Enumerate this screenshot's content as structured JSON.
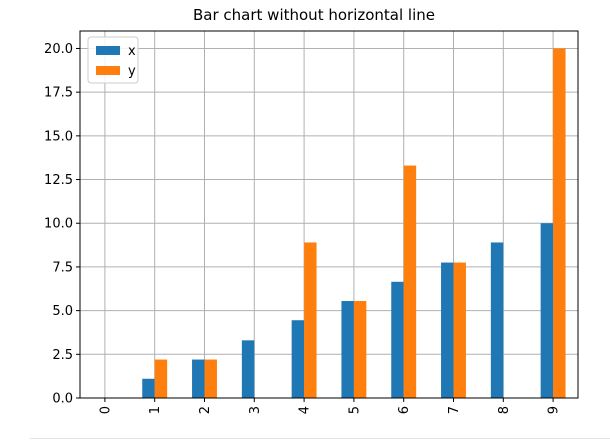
{
  "chart_data": {
    "type": "bar",
    "title": "Bar chart without horizontal line",
    "xlabel": "",
    "ylabel": "",
    "categories": [
      "0",
      "1",
      "2",
      "3",
      "4",
      "5",
      "6",
      "7",
      "8",
      "9"
    ],
    "series": [
      {
        "name": "x",
        "color": "#1f77b4",
        "values": [
          0,
          1.1,
          2.2,
          3.3,
          4.45,
          5.55,
          6.65,
          7.75,
          8.9,
          10.0
        ]
      },
      {
        "name": "y",
        "color": "#ff7f0e",
        "values": [
          0,
          2.2,
          2.2,
          0,
          8.9,
          5.55,
          13.3,
          7.75,
          0,
          20.0
        ]
      }
    ],
    "ylim": [
      0,
      21
    ],
    "yticks": [
      "0.0",
      "2.5",
      "5.0",
      "7.5",
      "10.0",
      "12.5",
      "15.0",
      "17.5",
      "20.0"
    ],
    "ytick_values": [
      0,
      2.5,
      5.0,
      7.5,
      10.0,
      12.5,
      15.0,
      17.5,
      20.0
    ],
    "grid": true,
    "legend_position": "top-left",
    "xtick_rotation": "vertical"
  }
}
